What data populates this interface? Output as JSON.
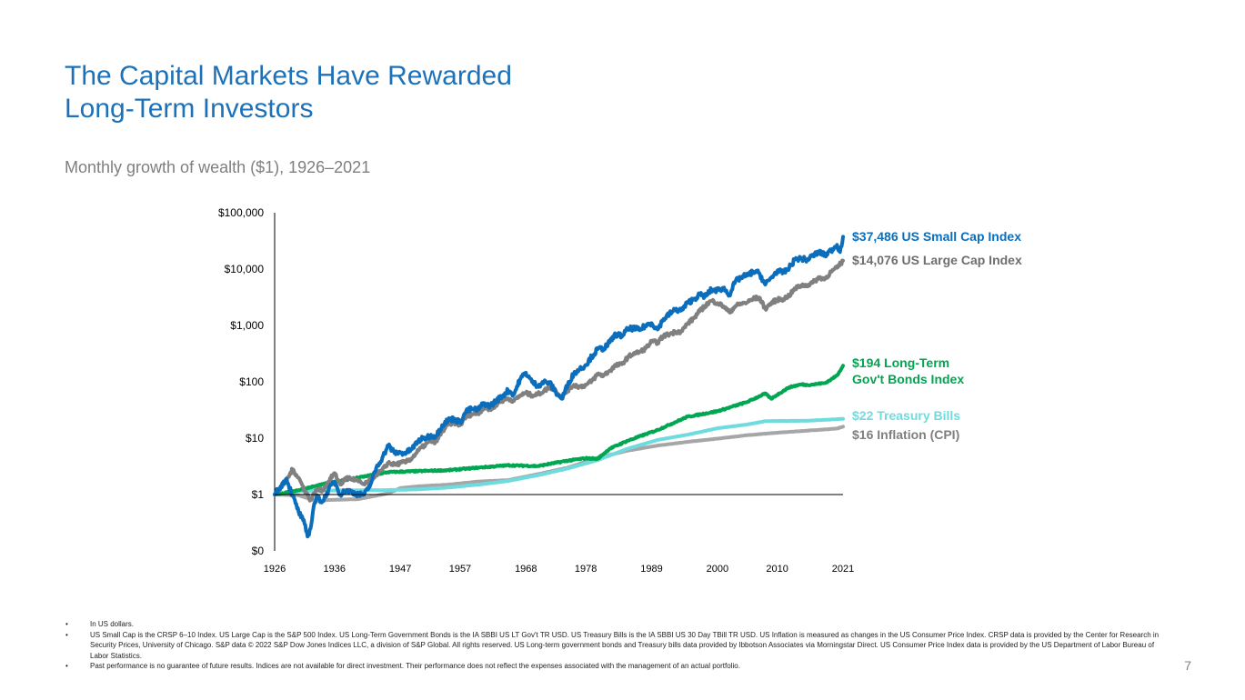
{
  "slide": {
    "title_lines": [
      "The Capital Markets Have Rewarded",
      "Long-Term Investors"
    ],
    "subtitle": "Monthly growth of wealth ($1), 1926–2021",
    "page_number": "7"
  },
  "footnotes": [
    "In US dollars.",
    "US Small Cap is the CRSP 6–10 Index. US Large Cap is the S&P 500 Index. US Long-Term Government Bonds is the IA SBBI US LT Gov't TR USD. US Treasury Bills is the IA SBBI US 30 Day TBill TR USD. US Inflation is measured as changes in the US Consumer Price Index. CRSP data is provided by the Center for Research in Security Prices, University of Chicago. S&P data © 2022 S&P Dow Jones Indices LLC, a division of S&P Global. All rights reserved. US Long-term government bonds and Treasury bills data provided by Ibbotson Associates via Morningstar Direct. US Consumer Price Index data is provided by the US Department of Labor Bureau of Labor Statistics.",
    "Past performance is no guarantee of future results. Indices are not available for direct investment. Their performance does not reflect the expenses associated with the management of an actual portfolio."
  ],
  "chart_data": {
    "type": "line",
    "yscale": "log",
    "xlim": [
      1926,
      2021
    ],
    "ylim": [
      0.1,
      100000
    ],
    "y_ticks": [
      {
        "value": 0.1,
        "label": "$0"
      },
      {
        "value": 1,
        "label": "$1"
      },
      {
        "value": 10,
        "label": "$10"
      },
      {
        "value": 100,
        "label": "$100"
      },
      {
        "value": 1000,
        "label": "$1,000"
      },
      {
        "value": 10000,
        "label": "$10,000"
      },
      {
        "value": 100000,
        "label": "$100,000"
      }
    ],
    "x_ticks": [
      1926,
      1936,
      1947,
      1957,
      1968,
      1978,
      1989,
      2000,
      2010,
      2021
    ],
    "series": [
      {
        "name": "US Small Cap Index",
        "end_label_lines": [
          "$37,486 US Small Cap Index"
        ],
        "color": "#0a6ebd",
        "points": [
          [
            1926,
            1.0
          ],
          [
            1927,
            1.4
          ],
          [
            1928,
            1.9
          ],
          [
            1929,
            0.95
          ],
          [
            1930,
            0.5
          ],
          [
            1931,
            0.3
          ],
          [
            1931.5,
            0.18
          ],
          [
            1932,
            0.25
          ],
          [
            1932.5,
            0.6
          ],
          [
            1933,
            0.9
          ],
          [
            1934,
            0.75
          ],
          [
            1935,
            1.2
          ],
          [
            1936,
            1.7
          ],
          [
            1937,
            1.0
          ],
          [
            1938,
            1.2
          ],
          [
            1939,
            1.1
          ],
          [
            1940,
            1.0
          ],
          [
            1941,
            1.0
          ],
          [
            1942,
            1.5
          ],
          [
            1943,
            3.0
          ],
          [
            1944,
            4.5
          ],
          [
            1945,
            7.5
          ],
          [
            1946,
            5.5
          ],
          [
            1947,
            5.5
          ],
          [
            1948,
            5.5
          ],
          [
            1949,
            6.5
          ],
          [
            1950,
            9
          ],
          [
            1951,
            10
          ],
          [
            1952,
            11
          ],
          [
            1953,
            11
          ],
          [
            1954,
            17
          ],
          [
            1955,
            21
          ],
          [
            1956,
            22
          ],
          [
            1957,
            19
          ],
          [
            1958,
            30
          ],
          [
            1959,
            33
          ],
          [
            1960,
            32
          ],
          [
            1961,
            42
          ],
          [
            1962,
            37
          ],
          [
            1963,
            46
          ],
          [
            1964,
            55
          ],
          [
            1965,
            70
          ],
          [
            1966,
            60
          ],
          [
            1967,
            110
          ],
          [
            1968,
            145
          ],
          [
            1969,
            100
          ],
          [
            1970,
            85
          ],
          [
            1971,
            100
          ],
          [
            1972,
            95
          ],
          [
            1973,
            65
          ],
          [
            1974,
            50
          ],
          [
            1975,
            90
          ],
          [
            1976,
            140
          ],
          [
            1977,
            170
          ],
          [
            1978,
            200
          ],
          [
            1979,
            280
          ],
          [
            1980,
            380
          ],
          [
            1981,
            390
          ],
          [
            1982,
            500
          ],
          [
            1983,
            700
          ],
          [
            1984,
            650
          ],
          [
            1985,
            850
          ],
          [
            1986,
            900
          ],
          [
            1987,
            820
          ],
          [
            1988,
            1000
          ],
          [
            1989,
            1100
          ],
          [
            1990,
            850
          ],
          [
            1991,
            1300
          ],
          [
            1992,
            1600
          ],
          [
            1993,
            1900
          ],
          [
            1994,
            1850
          ],
          [
            1995,
            2500
          ],
          [
            1996,
            2900
          ],
          [
            1997,
            3500
          ],
          [
            1998,
            3300
          ],
          [
            1999,
            4300
          ],
          [
            2000,
            4200
          ],
          [
            2001,
            4600
          ],
          [
            2002,
            3500
          ],
          [
            2003,
            6000
          ],
          [
            2004,
            7200
          ],
          [
            2005,
            7700
          ],
          [
            2006,
            9000
          ],
          [
            2007,
            8500
          ],
          [
            2008,
            5300
          ],
          [
            2009,
            7000
          ],
          [
            2010,
            9300
          ],
          [
            2011,
            8600
          ],
          [
            2012,
            10500
          ],
          [
            2013,
            15000
          ],
          [
            2014,
            15500
          ],
          [
            2015,
            14500
          ],
          [
            2016,
            17500
          ],
          [
            2017,
            20000
          ],
          [
            2018,
            17500
          ],
          [
            2019,
            21500
          ],
          [
            2020,
            27000
          ],
          [
            2020.5,
            20000
          ],
          [
            2021,
            37486
          ]
        ]
      },
      {
        "name": "US Large Cap Index",
        "end_label_lines": [
          "$14,076 US Large Cap Index"
        ],
        "color": "#808080",
        "points": [
          [
            1926,
            1.0
          ],
          [
            1927,
            1.3
          ],
          [
            1928,
            1.8
          ],
          [
            1929,
            2.8
          ],
          [
            1930,
            2.0
          ],
          [
            1931,
            1.2
          ],
          [
            1932,
            0.8
          ],
          [
            1933,
            1.2
          ],
          [
            1934,
            1.2
          ],
          [
            1935,
            1.7
          ],
          [
            1936,
            2.4
          ],
          [
            1937,
            1.5
          ],
          [
            1938,
            2.0
          ],
          [
            1939,
            1.9
          ],
          [
            1940,
            1.7
          ],
          [
            1941,
            1.5
          ],
          [
            1942,
            1.8
          ],
          [
            1943,
            2.3
          ],
          [
            1944,
            2.7
          ],
          [
            1945,
            3.7
          ],
          [
            1946,
            3.4
          ],
          [
            1947,
            3.6
          ],
          [
            1948,
            3.8
          ],
          [
            1949,
            4.5
          ],
          [
            1950,
            6
          ],
          [
            1951,
            7.4
          ],
          [
            1952,
            8.8
          ],
          [
            1953,
            8.7
          ],
          [
            1954,
            13
          ],
          [
            1955,
            17.5
          ],
          [
            1956,
            19
          ],
          [
            1957,
            17
          ],
          [
            1958,
            24
          ],
          [
            1959,
            27
          ],
          [
            1960,
            27.5
          ],
          [
            1961,
            35
          ],
          [
            1962,
            32
          ],
          [
            1963,
            39
          ],
          [
            1964,
            46
          ],
          [
            1965,
            51
          ],
          [
            1966,
            46
          ],
          [
            1967,
            57
          ],
          [
            1968,
            63
          ],
          [
            1969,
            58
          ],
          [
            1970,
            60
          ],
          [
            1971,
            69
          ],
          [
            1972,
            81
          ],
          [
            1973,
            70
          ],
          [
            1974,
            52
          ],
          [
            1975,
            71
          ],
          [
            1976,
            88
          ],
          [
            1977,
            82
          ],
          [
            1978,
            87
          ],
          [
            1979,
            103
          ],
          [
            1980,
            137
          ],
          [
            1981,
            130
          ],
          [
            1982,
            158
          ],
          [
            1983,
            193
          ],
          [
            1984,
            205
          ],
          [
            1985,
            270
          ],
          [
            1986,
            320
          ],
          [
            1987,
            336
          ],
          [
            1988,
            392
          ],
          [
            1989,
            516
          ],
          [
            1990,
            500
          ],
          [
            1991,
            652
          ],
          [
            1992,
            702
          ],
          [
            1993,
            772
          ],
          [
            1994,
            782
          ],
          [
            1995,
            1076
          ],
          [
            1996,
            1323
          ],
          [
            1997,
            1764
          ],
          [
            1998,
            2268
          ],
          [
            1999,
            2745
          ],
          [
            2000,
            2495
          ],
          [
            2001,
            2199
          ],
          [
            2002,
            1713
          ],
          [
            2003,
            2205
          ],
          [
            2004,
            2445
          ],
          [
            2005,
            2565
          ],
          [
            2006,
            2970
          ],
          [
            2007,
            3133
          ],
          [
            2008,
            1974
          ],
          [
            2009,
            2496
          ],
          [
            2010,
            2872
          ],
          [
            2011,
            2932
          ],
          [
            2012,
            3402
          ],
          [
            2013,
            4504
          ],
          [
            2014,
            5120
          ],
          [
            2015,
            5191
          ],
          [
            2016,
            5812
          ],
          [
            2017,
            7081
          ],
          [
            2018,
            6771
          ],
          [
            2019,
            8903
          ],
          [
            2020,
            10541
          ],
          [
            2021,
            14076
          ]
        ]
      },
      {
        "name": "Long-Term Gov't Bonds Index",
        "end_label_lines": [
          "$194 Long-Term",
          "Gov't Bonds Index"
        ],
        "color": "#00a651",
        "points": [
          [
            1926,
            1.0
          ],
          [
            1930,
            1.2
          ],
          [
            1935,
            1.6
          ],
          [
            1940,
            2.0
          ],
          [
            1945,
            2.5
          ],
          [
            1950,
            2.6
          ],
          [
            1955,
            2.7
          ],
          [
            1960,
            3.0
          ],
          [
            1965,
            3.3
          ],
          [
            1970,
            3.2
          ],
          [
            1975,
            4.0
          ],
          [
            1978,
            4.4
          ],
          [
            1980,
            4.3
          ],
          [
            1982,
            6.5
          ],
          [
            1985,
            9
          ],
          [
            1990,
            14
          ],
          [
            1995,
            24
          ],
          [
            2000,
            30
          ],
          [
            2005,
            44
          ],
          [
            2008,
            62
          ],
          [
            2009,
            50
          ],
          [
            2010,
            59
          ],
          [
            2012,
            80
          ],
          [
            2014,
            90
          ],
          [
            2015,
            88
          ],
          [
            2016,
            90
          ],
          [
            2018,
            95
          ],
          [
            2019,
            110
          ],
          [
            2020,
            130
          ],
          [
            2021,
            194
          ]
        ]
      },
      {
        "name": "Treasury Bills",
        "end_label_lines": [
          "$22 Treasury Bills"
        ],
        "color": "#6fdbde",
        "points": [
          [
            1926,
            1.0
          ],
          [
            1930,
            1.15
          ],
          [
            1935,
            1.18
          ],
          [
            1940,
            1.19
          ],
          [
            1945,
            1.2
          ],
          [
            1950,
            1.24
          ],
          [
            1955,
            1.33
          ],
          [
            1960,
            1.5
          ],
          [
            1965,
            1.74
          ],
          [
            1970,
            2.2
          ],
          [
            1975,
            2.9
          ],
          [
            1980,
            4.1
          ],
          [
            1985,
            6.5
          ],
          [
            1990,
            9.3
          ],
          [
            1995,
            11.5
          ],
          [
            2000,
            15
          ],
          [
            2005,
            17.5
          ],
          [
            2008,
            20
          ],
          [
            2010,
            20.2
          ],
          [
            2015,
            20.4
          ],
          [
            2021,
            22
          ]
        ]
      },
      {
        "name": "Inflation (CPI)",
        "end_label_lines": [
          "$16 Inflation (CPI)"
        ],
        "color": "#a6a6a6",
        "points": [
          [
            1926,
            1.0
          ],
          [
            1930,
            0.97
          ],
          [
            1933,
            0.76
          ],
          [
            1935,
            0.8
          ],
          [
            1940,
            0.83
          ],
          [
            1945,
            1.05
          ],
          [
            1947,
            1.3
          ],
          [
            1950,
            1.4
          ],
          [
            1955,
            1.5
          ],
          [
            1960,
            1.7
          ],
          [
            1965,
            1.8
          ],
          [
            1970,
            2.3
          ],
          [
            1975,
            3.0
          ],
          [
            1980,
            4.5
          ],
          [
            1985,
            6.0
          ],
          [
            1990,
            7.4
          ],
          [
            1995,
            8.6
          ],
          [
            2000,
            9.8
          ],
          [
            2005,
            11.3
          ],
          [
            2010,
            12.5
          ],
          [
            2015,
            13.6
          ],
          [
            2020,
            14.8
          ],
          [
            2021,
            16
          ]
        ]
      }
    ]
  }
}
